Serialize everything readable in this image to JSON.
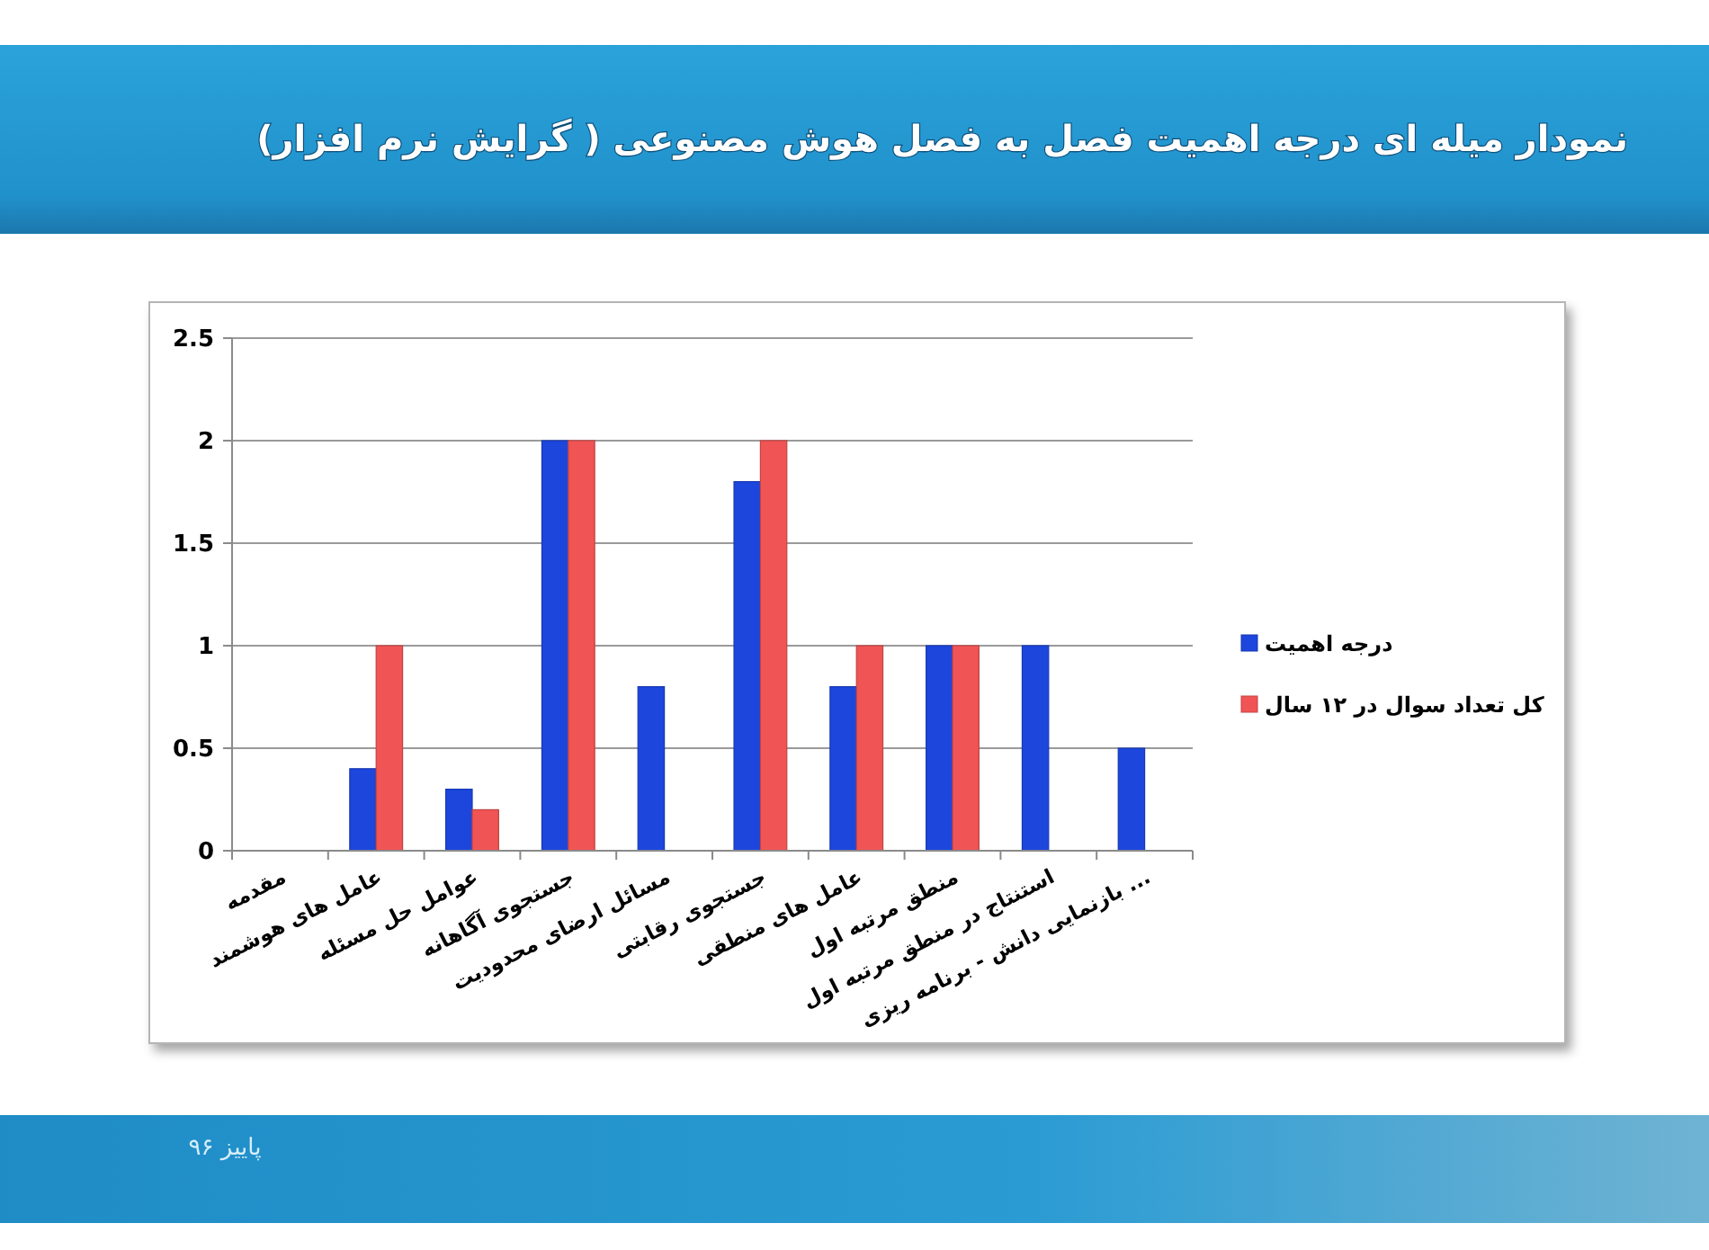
{
  "chart_data": {
    "type": "bar",
    "title": "نمودار میله ای درجه اهمیت فصل به فصل هوش مصنوعی ( گرایش نرم افزار)",
    "categories": [
      "مقدمه",
      "عامل های هوشمند",
      "عوامل حل مسئله",
      "جستجوی آگاهانه",
      "مسائل ارضای محدودیت",
      "جستجوی رقابتی",
      "عامل های منطقی",
      "منطق مرتبه اول",
      "استنتاج در منطق مرتبه اول",
      "بازنمایی دانش - برنامه ریزی ..."
    ],
    "series": [
      {
        "name": "درجه اهمیت",
        "color": "#1c46dc",
        "values": [
          null,
          0.4,
          0.3,
          2,
          0.8,
          1.8,
          0.8,
          1,
          1,
          0.5
        ]
      },
      {
        "name": "کل تعداد سوال در ۱۲ سال",
        "color": "#f05454",
        "values": [
          null,
          1,
          0.2,
          2,
          null,
          2,
          1,
          1,
          null,
          null
        ]
      }
    ],
    "ylim": [
      0,
      2.5
    ],
    "yticks": [
      0,
      0.5,
      1,
      1.5,
      2,
      2.5
    ],
    "grid": "y",
    "legend": "right",
    "annotations": [
      "پاییز ۹۶"
    ]
  }
}
